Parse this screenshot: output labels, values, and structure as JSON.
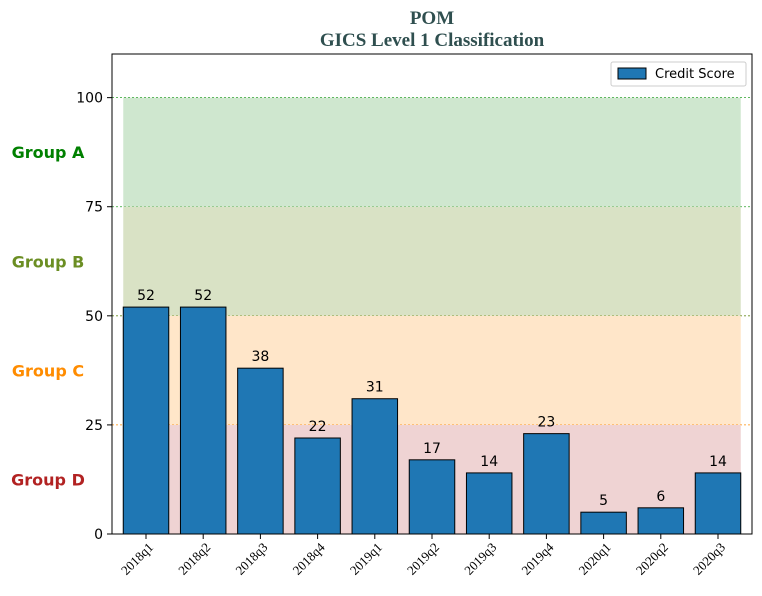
{
  "chart_data": {
    "type": "bar",
    "title": "POM",
    "subtitle": "GICS Level 1 Classification",
    "categories": [
      "2018q1",
      "2018q2",
      "2018q3",
      "2018q4",
      "2019q1",
      "2019q2",
      "2019q3",
      "2019q4",
      "2020q1",
      "2020q2",
      "2020q3"
    ],
    "series": [
      {
        "name": "Credit Score",
        "values": [
          52,
          52,
          38,
          22,
          31,
          17,
          14,
          23,
          5,
          6,
          14
        ],
        "color": "#1f77b4"
      }
    ],
    "ylim": [
      0,
      110
    ],
    "yticks": [
      0,
      25,
      50,
      75,
      100
    ],
    "xlabel": "",
    "ylabel": "",
    "legend": {
      "entry": "Credit Score",
      "position": "top-right"
    },
    "bands": [
      {
        "label": "Group A",
        "from": 75,
        "to": 100,
        "color": "#2ca02c",
        "fill": "#cfe7cf",
        "label_color": "#008000"
      },
      {
        "label": "Group B",
        "from": 50,
        "to": 75,
        "color": "#6b8e23",
        "fill": "#d9e2c5",
        "label_color": "#6b8e23"
      },
      {
        "label": "Group C",
        "from": 25,
        "to": 50,
        "color": "#ff8c00",
        "fill": "#ffe6c9",
        "label_color": "#ff8c00"
      },
      {
        "label": "Group D",
        "from": 0,
        "to": 25,
        "color": "#b22222",
        "fill": "#efd3d3",
        "label_color": "#b22222"
      }
    ]
  }
}
